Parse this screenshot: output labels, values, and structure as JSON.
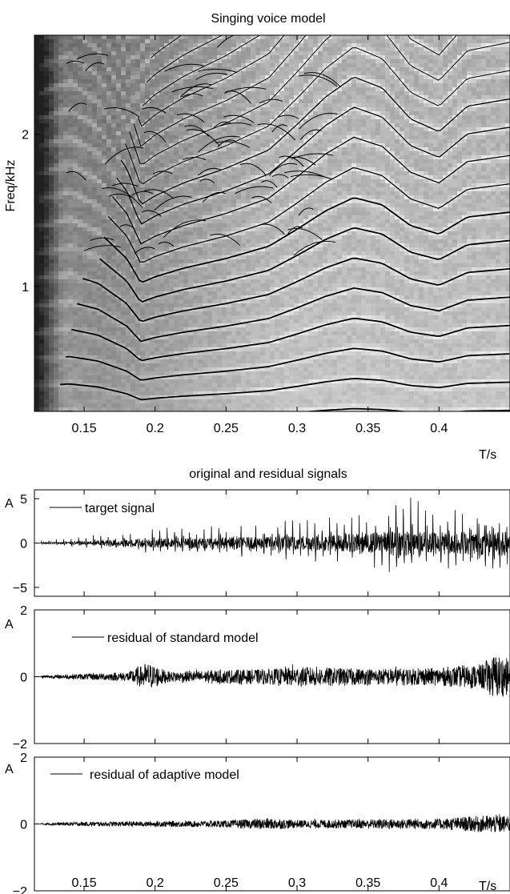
{
  "chart_data": [
    {
      "type": "heatmap",
      "title": "Singing voice model",
      "xlabel": "T/s",
      "ylabel": "Freq/kHz",
      "xlim": [
        0.115,
        0.45
      ],
      "ylim": [
        0.18,
        2.65
      ],
      "xticks": [
        0.15,
        0.2,
        0.25,
        0.3,
        0.35,
        0.4
      ],
      "xtick_labels": [
        "0.15",
        "0.2",
        "0.25",
        "0.3",
        "0.35",
        "0.4"
      ],
      "yticks": [
        1,
        2
      ],
      "ytick_labels": [
        "1",
        "2"
      ],
      "colormap": "gray-inverted",
      "partial_tracks": "black curves overlaid on spectrogram (harmonic trajectories of the singing voice)",
      "f0_contour": {
        "t": [
          0.12,
          0.14,
          0.16,
          0.18,
          0.19,
          0.2,
          0.22,
          0.25,
          0.28,
          0.3,
          0.32,
          0.34,
          0.36,
          0.38,
          0.4,
          0.42,
          0.45
        ],
        "f0_khz": [
          0.175,
          0.18,
          0.17,
          0.148,
          0.128,
          0.133,
          0.14,
          0.148,
          0.158,
          0.172,
          0.187,
          0.198,
          0.192,
          0.175,
          0.168,
          0.182,
          0.186
        ]
      }
    },
    {
      "type": "line",
      "title": "original and residual signals",
      "xlabel": "",
      "ylabel": "A",
      "ylim": [
        -6,
        6
      ],
      "yticks": [
        -5,
        0,
        5
      ],
      "ytick_labels": [
        "−5",
        "0",
        "5"
      ],
      "xlim": [
        0.115,
        0.45
      ],
      "legend": "target signal",
      "envelope": {
        "t": [
          0.12,
          0.14,
          0.16,
          0.18,
          0.2,
          0.22,
          0.25,
          0.28,
          0.3,
          0.32,
          0.35,
          0.37,
          0.4,
          0.42,
          0.45
        ],
        "amplitude": [
          0.3,
          0.6,
          1.2,
          1.6,
          2.0,
          2.2,
          2.6,
          3.0,
          3.3,
          3.6,
          4.5,
          5.6,
          4.8,
          5.2,
          5.8
        ]
      }
    },
    {
      "type": "line",
      "xlabel": "",
      "ylabel": "A",
      "ylim": [
        -2,
        2
      ],
      "yticks": [
        -2,
        0,
        2
      ],
      "ytick_labels": [
        "−2",
        "0",
        "2"
      ],
      "xlim": [
        0.115,
        0.45
      ],
      "legend": "residual of standard model",
      "envelope": {
        "t": [
          0.12,
          0.15,
          0.18,
          0.195,
          0.2,
          0.21,
          0.25,
          0.28,
          0.3,
          0.35,
          0.4,
          0.43,
          0.44,
          0.45
        ],
        "amplitude": [
          0.05,
          0.12,
          0.18,
          0.55,
          0.45,
          0.2,
          0.28,
          0.3,
          0.4,
          0.32,
          0.35,
          0.5,
          0.9,
          0.7
        ]
      }
    },
    {
      "type": "line",
      "xlabel": "T/s",
      "ylabel": "A",
      "ylim": [
        -2,
        2
      ],
      "yticks": [
        -2,
        0,
        2
      ],
      "ytick_labels": [
        "−2",
        "0",
        "2"
      ],
      "xlim": [
        0.115,
        0.45
      ],
      "xticks": [
        0.15,
        0.2,
        0.25,
        0.3,
        0.35,
        0.4
      ],
      "xtick_labels": [
        "0.15",
        "0.2",
        "0.25",
        "0.3",
        "0.35",
        "0.4"
      ],
      "legend": "residual of adaptive model",
      "envelope": {
        "t": [
          0.12,
          0.15,
          0.2,
          0.25,
          0.28,
          0.3,
          0.35,
          0.4,
          0.44,
          0.45
        ],
        "amplitude": [
          0.04,
          0.08,
          0.1,
          0.13,
          0.22,
          0.15,
          0.18,
          0.2,
          0.35,
          0.3
        ]
      }
    }
  ]
}
